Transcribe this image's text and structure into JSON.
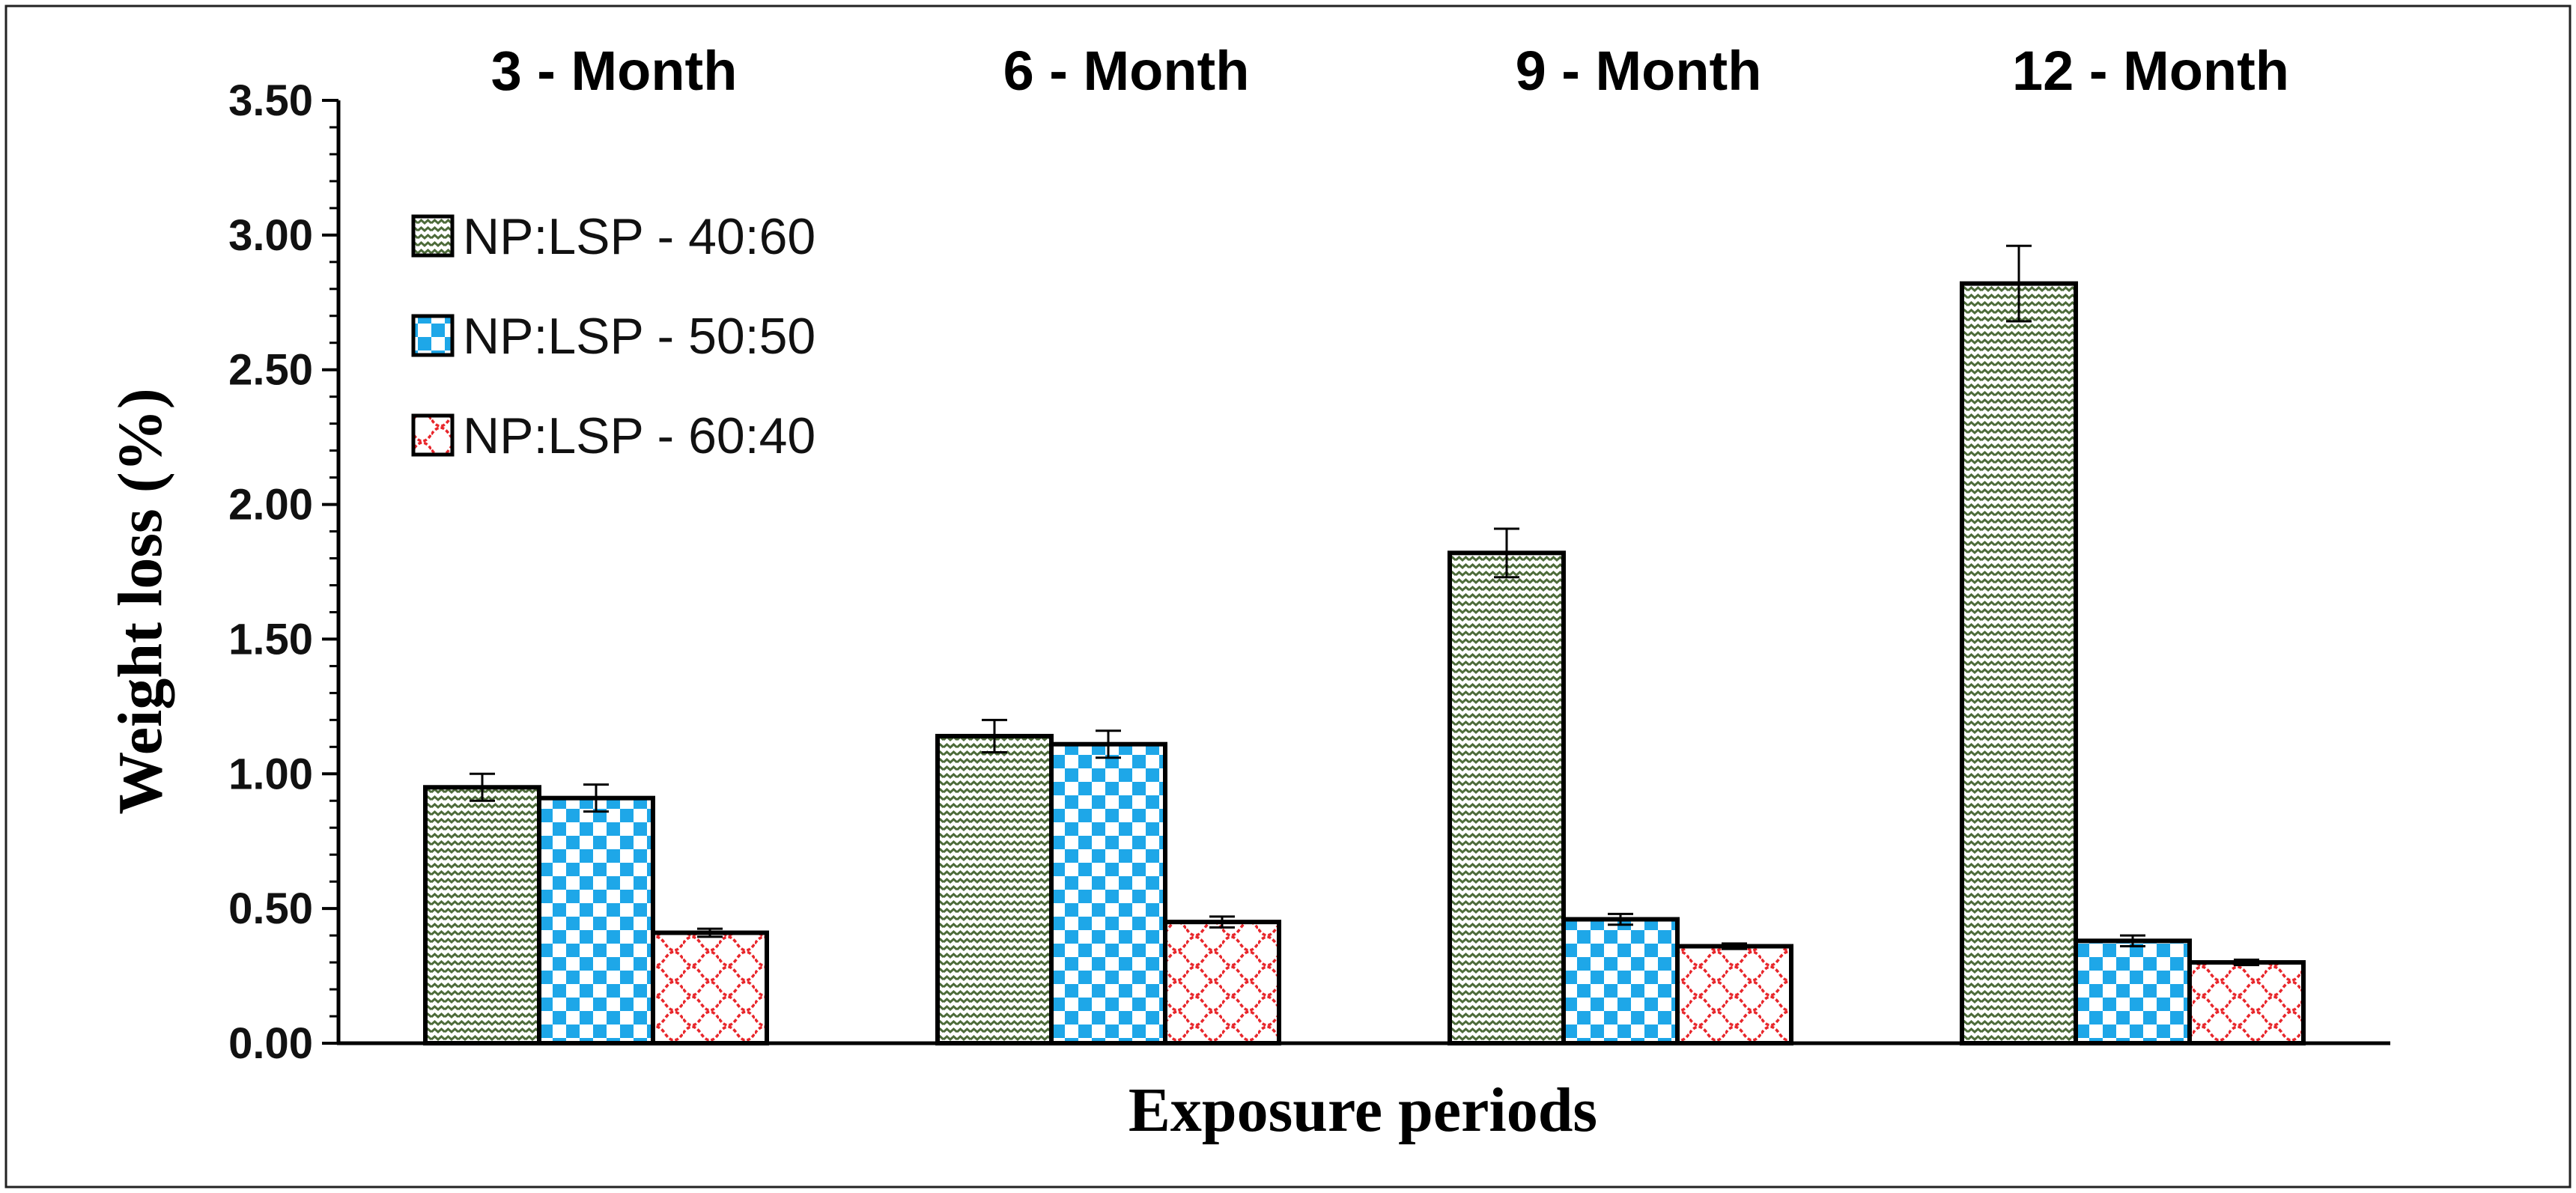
{
  "chart_data": {
    "type": "bar",
    "title": "",
    "categories": [
      "3 - Month",
      "6 - Month",
      "9 - Month",
      "12 - Month"
    ],
    "series": [
      {
        "name": "NP:LSP - 40:60",
        "values": [
          0.95,
          1.14,
          1.82,
          2.82
        ],
        "errors": [
          0.05,
          0.06,
          0.09,
          0.14
        ],
        "pattern": "zigzag",
        "color": "#4d6b3a"
      },
      {
        "name": "NP:LSP - 50:50",
        "values": [
          0.91,
          1.11,
          0.46,
          0.38
        ],
        "errors": [
          0.05,
          0.05,
          0.02,
          0.02
        ],
        "pattern": "checker",
        "color": "#1ea7e8"
      },
      {
        "name": "NP:LSP - 60:40",
        "values": [
          0.41,
          0.45,
          0.36,
          0.3
        ],
        "errors": [
          0.015,
          0.02,
          0.01,
          0.01
        ],
        "pattern": "scallop",
        "color": "#e8262b"
      }
    ],
    "xlabel": "Exposure periods",
    "ylabel": "Weight loss (%)",
    "ylim": [
      0,
      3.5
    ],
    "yticks": [
      "0.00",
      "0.50",
      "1.00",
      "1.50",
      "2.00",
      "2.50",
      "3.00",
      "3.50"
    ],
    "legend_position": "top-left",
    "grid": false
  }
}
